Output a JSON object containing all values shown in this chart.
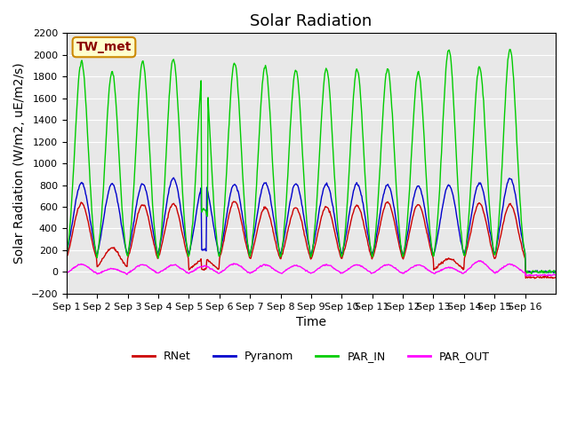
{
  "title": "Solar Radiation",
  "ylabel": "Solar Radiation (W/m2, uE/m2/s)",
  "xlabel": "Time",
  "station_label": "TW_met",
  "ylim": [
    -200,
    2200
  ],
  "yticks": [
    -200,
    0,
    200,
    400,
    600,
    800,
    1000,
    1200,
    1400,
    1600,
    1800,
    2000,
    2200
  ],
  "x_tick_labels": [
    "Sep 1",
    "Sep 2",
    "Sep 3",
    "Sep 4",
    "Sep 5",
    "Sep 6",
    "Sep 7",
    "Sep 8",
    "Sep 9",
    "Sep 10",
    "Sep 11",
    "Sep 12",
    "Sep 13",
    "Sep 14",
    "Sep 15",
    "Sep 16"
  ],
  "n_days": 16,
  "colors": {
    "RNet": "#cc0000",
    "Pyranom": "#0000cc",
    "PAR_IN": "#00cc00",
    "PAR_OUT": "#ff00ff"
  },
  "legend_entries": [
    "RNet",
    "Pyranom",
    "PAR_IN",
    "PAR_OUT"
  ],
  "background_color": "#e8e8e8",
  "title_fontsize": 13,
  "label_fontsize": 10
}
